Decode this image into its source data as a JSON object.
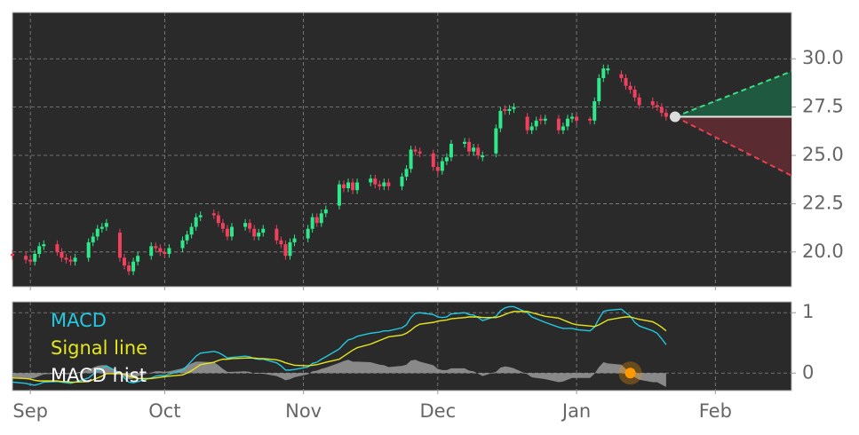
{
  "chart_data": [
    {
      "type": "candlestick",
      "x": [
        0,
        3,
        4,
        5,
        6,
        7,
        10,
        11,
        12,
        13,
        14,
        17,
        18,
        19,
        20,
        21,
        24,
        25,
        26,
        27,
        28,
        31,
        32,
        33,
        34,
        35,
        38,
        39,
        40,
        41,
        42,
        45,
        46,
        47,
        48,
        49,
        52,
        53,
        54,
        55,
        56,
        59,
        60,
        61,
        62,
        63,
        66,
        67,
        68,
        69,
        70,
        73,
        74,
        75,
        76,
        77,
        80,
        81,
        82,
        83,
        84,
        87,
        88,
        89,
        90,
        91,
        94,
        95,
        96,
        97,
        98,
        101,
        102,
        103,
        104,
        105,
        108,
        109,
        110,
        111,
        112,
        115,
        116,
        117,
        118,
        119,
        122,
        123,
        124,
        125,
        126,
        129,
        130,
        131,
        132,
        133,
        136,
        137,
        138,
        139,
        140,
        143,
        144,
        145,
        146
      ],
      "open": [
        19.9,
        19.8,
        19.6,
        19.5,
        19.9,
        20.3,
        20.4,
        20.0,
        19.7,
        19.6,
        19.5,
        19.7,
        20.5,
        20.8,
        21.2,
        21.3,
        21.0,
        19.7,
        19.3,
        19.0,
        19.5,
        19.8,
        20.3,
        20.2,
        20.0,
        19.9,
        20.2,
        20.6,
        20.9,
        21.3,
        21.8,
        22.0,
        21.9,
        21.5,
        21.2,
        20.8,
        21.3,
        21.5,
        21.2,
        20.8,
        21.0,
        21.2,
        20.6,
        20.4,
        19.8,
        20.5,
        20.7,
        21.2,
        21.8,
        21.5,
        22.0,
        22.4,
        23.5,
        23.3,
        23.6,
        23.2,
        23.6,
        23.8,
        23.5,
        23.4,
        23.6,
        23.4,
        23.9,
        24.3,
        25.3,
        25.2,
        25.1,
        24.4,
        24.2,
        24.7,
        24.9,
        25.6,
        25.7,
        25.2,
        25.4,
        24.9,
        25.1,
        26.4,
        27.4,
        27.3,
        27.4,
        27.0,
        26.3,
        26.5,
        26.9,
        26.8,
        26.9,
        26.3,
        26.5,
        26.9,
        27.0,
        26.9,
        26.8,
        27.8,
        29.0,
        29.4,
        29.2,
        29.0,
        28.6,
        28.4,
        28.0,
        27.8,
        27.6,
        27.5,
        27.2
      ],
      "high": [
        20.1,
        20.0,
        19.8,
        20.1,
        20.5,
        20.6,
        20.6,
        20.2,
        19.9,
        19.8,
        19.9,
        20.7,
        21.0,
        21.4,
        21.5,
        21.7,
        21.2,
        19.9,
        19.5,
        19.7,
        20.0,
        20.5,
        20.5,
        20.4,
        20.2,
        20.4,
        20.8,
        21.1,
        21.5,
        22.0,
        22.1,
        22.2,
        22.1,
        21.7,
        21.4,
        21.5,
        21.7,
        21.7,
        21.4,
        21.2,
        21.4,
        21.4,
        20.8,
        20.6,
        20.7,
        20.9,
        21.4,
        22.0,
        22.0,
        22.2,
        22.4,
        23.7,
        23.7,
        23.8,
        23.8,
        23.8,
        24.0,
        24.0,
        23.7,
        23.8,
        23.8,
        24.1,
        24.5,
        25.5,
        25.5,
        25.4,
        25.3,
        24.6,
        24.9,
        25.1,
        25.8,
        25.9,
        25.9,
        25.6,
        25.6,
        25.2,
        26.6,
        27.5,
        27.6,
        27.6,
        27.7,
        27.2,
        26.7,
        27.0,
        27.1,
        27.1,
        27.1,
        26.7,
        27.1,
        27.2,
        27.2,
        27.0,
        28.0,
        29.2,
        29.7,
        29.7,
        29.4,
        29.2,
        28.8,
        28.6,
        28.2,
        28.0,
        27.8,
        27.7,
        27.4
      ],
      "low": [
        19.6,
        19.4,
        19.3,
        19.3,
        19.7,
        20.1,
        19.8,
        19.5,
        19.4,
        19.3,
        19.3,
        19.5,
        20.3,
        20.6,
        21.0,
        21.1,
        19.5,
        19.1,
        18.8,
        18.8,
        19.3,
        19.6,
        20.0,
        19.8,
        19.7,
        19.7,
        20.0,
        20.4,
        20.7,
        21.1,
        21.6,
        21.7,
        21.3,
        21.0,
        20.6,
        20.6,
        21.1,
        21.0,
        20.6,
        20.6,
        20.8,
        20.4,
        20.2,
        19.6,
        19.6,
        20.3,
        20.5,
        21.0,
        21.3,
        21.3,
        21.8,
        22.2,
        23.1,
        23.1,
        23.0,
        23.0,
        23.4,
        23.3,
        23.2,
        23.2,
        23.2,
        23.2,
        23.7,
        24.1,
        25.0,
        24.9,
        24.2,
        24.0,
        24.0,
        24.5,
        24.7,
        25.4,
        25.0,
        25.0,
        24.8,
        24.7,
        24.9,
        26.2,
        27.1,
        27.1,
        27.2,
        26.1,
        26.1,
        26.3,
        26.6,
        26.6,
        26.1,
        26.1,
        26.3,
        26.7,
        26.6,
        26.6,
        26.6,
        27.6,
        28.8,
        29.2,
        28.8,
        28.4,
        28.2,
        27.8,
        27.4,
        27.4,
        27.3,
        27.0,
        26.8
      ],
      "close": [
        19.8,
        19.6,
        19.5,
        19.9,
        20.3,
        20.4,
        20.0,
        19.7,
        19.6,
        19.5,
        19.7,
        20.5,
        20.8,
        21.2,
        21.3,
        21.5,
        19.7,
        19.3,
        19.0,
        19.5,
        19.8,
        20.3,
        20.2,
        20.0,
        19.9,
        20.2,
        20.6,
        20.9,
        21.3,
        21.8,
        21.9,
        21.9,
        21.5,
        21.2,
        20.8,
        21.3,
        21.5,
        21.2,
        20.8,
        21.0,
        21.2,
        20.6,
        20.4,
        19.8,
        20.5,
        20.7,
        21.2,
        21.8,
        21.5,
        22.0,
        22.2,
        23.5,
        23.3,
        23.6,
        23.2,
        23.6,
        23.8,
        23.5,
        23.4,
        23.6,
        23.4,
        23.9,
        24.3,
        25.3,
        25.2,
        25.1,
        24.4,
        24.2,
        24.7,
        24.9,
        25.6,
        25.7,
        25.2,
        25.4,
        25.0,
        25.0,
        26.4,
        27.3,
        27.3,
        27.4,
        27.5,
        26.3,
        26.5,
        26.8,
        26.8,
        26.9,
        26.3,
        26.5,
        26.9,
        27.0,
        26.8,
        26.8,
        27.8,
        29.0,
        29.5,
        29.5,
        29.0,
        28.6,
        28.4,
        28.0,
        27.6,
        27.6,
        27.5,
        27.2,
        27.0
      ],
      "up_color": "#2ee88a",
      "down_color": "#f0405e",
      "forecast": {
        "x": [
          148,
          174
        ],
        "mid": [
          27.0,
          27.0
        ],
        "upper": [
          27.0,
          29.35
        ],
        "lower": [
          27.0,
          23.95
        ],
        "upper_color": "#3ddc84",
        "lower_color": "#e8404f",
        "upper_fill": "#1f5a40",
        "lower_fill": "#5a2b31",
        "mid_color": "#e8e8e8"
      },
      "xlim": [
        0,
        174
      ],
      "xticks": [
        {
          "value": 4,
          "label": "Sep"
        },
        {
          "value": 34,
          "label": "Oct"
        },
        {
          "value": 65,
          "label": "Nov"
        },
        {
          "value": 95,
          "label": "Dec"
        },
        {
          "value": 126,
          "label": "Jan"
        },
        {
          "value": 157,
          "label": "Feb"
        }
      ],
      "ylim": [
        18.2,
        32.4
      ],
      "yticks": [
        {
          "value": 20,
          "label": "20.0"
        },
        22.5,
        {
          "value": 25,
          "label": "25.0"
        },
        27.5,
        {
          "value": 30,
          "label": "30.0"
        }
      ],
      "grid": true
    },
    {
      "type": "line",
      "x": [
        0,
        3,
        4,
        5,
        6,
        7,
        10,
        11,
        12,
        13,
        14,
        17,
        18,
        19,
        20,
        21,
        24,
        25,
        26,
        27,
        28,
        31,
        32,
        33,
        34,
        35,
        38,
        39,
        40,
        41,
        42,
        45,
        46,
        47,
        48,
        49,
        52,
        53,
        54,
        55,
        56,
        59,
        60,
        61,
        62,
        63,
        66,
        67,
        68,
        69,
        70,
        73,
        74,
        75,
        76,
        77,
        80,
        81,
        82,
        83,
        84,
        87,
        88,
        89,
        90,
        91,
        94,
        95,
        96,
        97,
        98,
        101,
        102,
        103,
        104,
        105,
        108,
        109,
        110,
        111,
        112,
        115,
        116,
        117,
        118,
        119,
        122,
        123,
        124,
        125,
        126,
        129,
        130,
        131,
        132,
        133,
        136,
        137,
        138,
        139,
        140,
        143,
        144,
        145,
        146
      ],
      "series": [
        {
          "name": "MACD hist",
          "color": "#9a9a9a",
          "kind": "area",
          "values": [
            -0.07,
            -0.08,
            -0.09,
            -0.08,
            -0.05,
            -0.02,
            -0.01,
            -0.01,
            -0.02,
            -0.02,
            0.0,
            0.06,
            0.09,
            0.12,
            0.13,
            0.13,
            0.01,
            -0.06,
            -0.1,
            -0.09,
            -0.05,
            0.01,
            0.03,
            0.03,
            0.02,
            0.03,
            0.08,
            0.12,
            0.16,
            0.19,
            0.19,
            0.18,
            0.13,
            0.07,
            0.02,
            0.02,
            0.03,
            0.02,
            -0.01,
            -0.01,
            -0.01,
            -0.05,
            -0.08,
            -0.12,
            -0.1,
            -0.07,
            -0.02,
            0.03,
            0.04,
            0.07,
            0.09,
            0.17,
            0.2,
            0.22,
            0.19,
            0.19,
            0.18,
            0.16,
            0.14,
            0.13,
            0.1,
            0.12,
            0.14,
            0.21,
            0.22,
            0.19,
            0.13,
            0.07,
            0.05,
            0.05,
            0.08,
            0.08,
            0.04,
            0.03,
            -0.01,
            -0.05,
            0.02,
            0.09,
            0.11,
            0.1,
            0.08,
            -0.02,
            -0.07,
            -0.08,
            -0.09,
            -0.1,
            -0.15,
            -0.14,
            -0.11,
            -0.08,
            -0.08,
            -0.08,
            -0.01,
            0.1,
            0.18,
            0.16,
            0.14,
            0.07,
            0.01,
            -0.07,
            -0.11,
            -0.15,
            -0.15,
            -0.19,
            -0.23
          ]
        },
        {
          "name": "MACD",
          "color": "#22c8e0",
          "values": [
            -0.15,
            -0.17,
            -0.19,
            -0.2,
            -0.18,
            -0.15,
            -0.14,
            -0.15,
            -0.16,
            -0.17,
            -0.15,
            -0.08,
            -0.02,
            0.04,
            0.08,
            0.12,
            0.0,
            -0.08,
            -0.15,
            -0.16,
            -0.14,
            -0.08,
            -0.05,
            -0.04,
            -0.04,
            -0.02,
            0.05,
            0.12,
            0.2,
            0.28,
            0.33,
            0.36,
            0.34,
            0.3,
            0.25,
            0.26,
            0.28,
            0.27,
            0.24,
            0.23,
            0.23,
            0.17,
            0.12,
            0.05,
            0.05,
            0.06,
            0.1,
            0.16,
            0.18,
            0.23,
            0.27,
            0.4,
            0.48,
            0.55,
            0.57,
            0.61,
            0.66,
            0.67,
            0.68,
            0.7,
            0.7,
            0.75,
            0.8,
            0.92,
            0.99,
            1.0,
            0.97,
            0.93,
            0.92,
            0.93,
            0.98,
            1.0,
            0.97,
            0.96,
            0.92,
            0.87,
            0.94,
            1.03,
            1.08,
            1.1,
            1.1,
            1.0,
            0.93,
            0.9,
            0.87,
            0.84,
            0.76,
            0.74,
            0.74,
            0.74,
            0.72,
            0.7,
            0.76,
            0.9,
            1.02,
            1.04,
            1.06,
            1.0,
            0.94,
            0.84,
            0.78,
            0.7,
            0.66,
            0.57,
            0.47
          ]
        },
        {
          "name": "Signal line",
          "color": "#e6e61e",
          "values": [
            -0.08,
            -0.09,
            -0.1,
            -0.12,
            -0.13,
            -0.13,
            -0.13,
            -0.14,
            -0.14,
            -0.15,
            -0.15,
            -0.14,
            -0.11,
            -0.08,
            -0.05,
            -0.01,
            -0.01,
            -0.02,
            -0.05,
            -0.07,
            -0.09,
            -0.09,
            -0.08,
            -0.07,
            -0.06,
            -0.05,
            -0.03,
            0.0,
            0.04,
            0.09,
            0.14,
            0.18,
            0.21,
            0.23,
            0.23,
            0.24,
            0.25,
            0.25,
            0.25,
            0.24,
            0.24,
            0.22,
            0.2,
            0.17,
            0.15,
            0.13,
            0.12,
            0.13,
            0.14,
            0.16,
            0.18,
            0.23,
            0.28,
            0.33,
            0.38,
            0.42,
            0.48,
            0.51,
            0.54,
            0.57,
            0.6,
            0.63,
            0.66,
            0.71,
            0.77,
            0.81,
            0.84,
            0.86,
            0.87,
            0.88,
            0.9,
            0.92,
            0.93,
            0.93,
            0.93,
            0.92,
            0.92,
            0.94,
            0.97,
            1.0,
            1.02,
            1.02,
            1.0,
            0.98,
            0.96,
            0.94,
            0.91,
            0.88,
            0.85,
            0.82,
            0.8,
            0.78,
            0.77,
            0.8,
            0.84,
            0.88,
            0.92,
            0.93,
            0.93,
            0.91,
            0.89,
            0.85,
            0.81,
            0.76,
            0.7
          ]
        }
      ],
      "marker": {
        "x": 138,
        "y": 0,
        "color": "#ff9900"
      },
      "xlim": [
        0,
        174
      ],
      "xticks": [
        {
          "value": 4,
          "label": "Sep"
        },
        {
          "value": 34,
          "label": "Oct"
        },
        {
          "value": 65,
          "label": "Nov"
        },
        {
          "value": 95,
          "label": "Dec"
        },
        {
          "value": 126,
          "label": "Jan"
        },
        {
          "value": 157,
          "label": "Feb"
        }
      ],
      "ylim": [
        -0.29,
        1.18
      ],
      "yticks": [
        0,
        1
      ],
      "grid": true
    }
  ]
}
